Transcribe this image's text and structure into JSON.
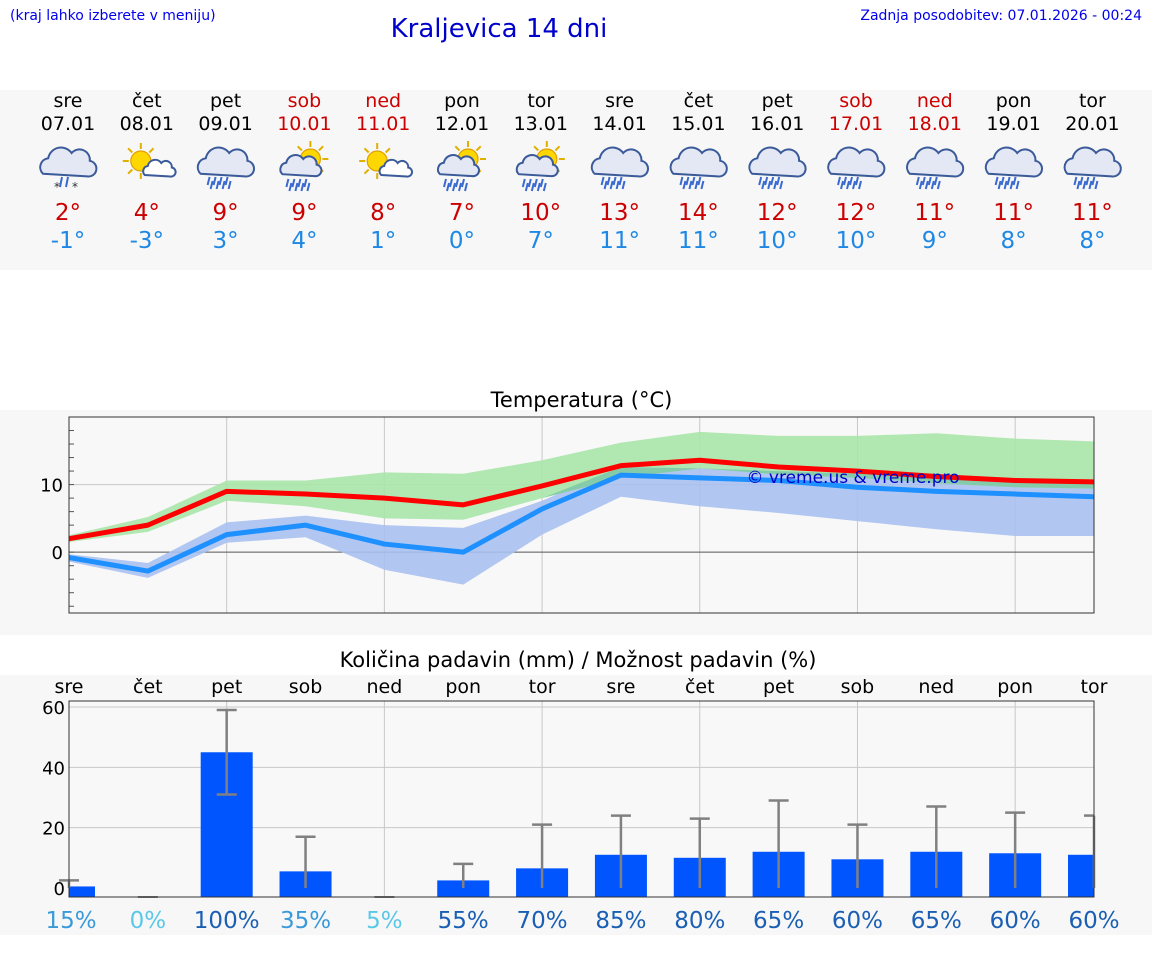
{
  "header": {
    "menu_hint": "(kraj lahko izberete v meniju)",
    "title": "Kraljevica 14 dni",
    "updated": "Zadnja posodobitev: 07.01.2026 - 00:24"
  },
  "colors": {
    "weekday": "#000000",
    "weekend": "#cc0000",
    "tmax": "#cc0000",
    "tmin": "#1e88e5",
    "line_max": "#ff0000",
    "line_min": "#1e90ff",
    "band_max": "#a8e6a8",
    "band_min": "#a8c0f0",
    "band_overlap": "#7ec8a8",
    "bar": "#0055ff",
    "errbar": "#808080",
    "watermark": "#0000cc"
  },
  "days": [
    {
      "day": "sre",
      "date": "07.01",
      "weekend": false,
      "icon": "cloud-snow-icon",
      "tmax": "2°",
      "tmin": "-1°"
    },
    {
      "day": "čet",
      "date": "08.01",
      "weekend": false,
      "icon": "sun-cloud-icon",
      "tmax": "4°",
      "tmin": "-3°"
    },
    {
      "day": "pet",
      "date": "09.01",
      "weekend": false,
      "icon": "cloud-rain-icon",
      "tmax": "9°",
      "tmin": "3°"
    },
    {
      "day": "sob",
      "date": "10.01",
      "weekend": true,
      "icon": "sun-cloud-rain-icon",
      "tmax": "9°",
      "tmin": "4°"
    },
    {
      "day": "ned",
      "date": "11.01",
      "weekend": true,
      "icon": "sun-cloud-icon",
      "tmax": "8°",
      "tmin": "1°"
    },
    {
      "day": "pon",
      "date": "12.01",
      "weekend": false,
      "icon": "sun-cloud-rain-icon",
      "tmax": "7°",
      "tmin": "0°"
    },
    {
      "day": "tor",
      "date": "13.01",
      "weekend": false,
      "icon": "sun-cloud-rain-icon",
      "tmax": "10°",
      "tmin": "7°"
    },
    {
      "day": "sre",
      "date": "14.01",
      "weekend": false,
      "icon": "cloud-rain-icon",
      "tmax": "13°",
      "tmin": "11°"
    },
    {
      "day": "čet",
      "date": "15.01",
      "weekend": false,
      "icon": "cloud-rain-icon",
      "tmax": "14°",
      "tmin": "11°"
    },
    {
      "day": "pet",
      "date": "16.01",
      "weekend": false,
      "icon": "cloud-rain-icon",
      "tmax": "12°",
      "tmin": "10°"
    },
    {
      "day": "sob",
      "date": "17.01",
      "weekend": true,
      "icon": "cloud-rain-icon",
      "tmax": "12°",
      "tmin": "10°"
    },
    {
      "day": "ned",
      "date": "18.01",
      "weekend": true,
      "icon": "cloud-rain-icon",
      "tmax": "11°",
      "tmin": "9°"
    },
    {
      "day": "pon",
      "date": "19.01",
      "weekend": false,
      "icon": "cloud-rain-icon",
      "tmax": "11°",
      "tmin": "8°"
    },
    {
      "day": "tor",
      "date": "20.01",
      "weekend": false,
      "icon": "cloud-rain-icon",
      "tmax": "11°",
      "tmin": "8°"
    }
  ],
  "chart_data": [
    {
      "type": "line",
      "title": "Temperatura (°C)",
      "xlabel": "",
      "ylabel": "",
      "ylim": [
        -9,
        20
      ],
      "yticks": [
        0,
        10
      ],
      "grid": true,
      "watermark": "© vreme.us & vreme.pro",
      "x": [
        0,
        1,
        2,
        3,
        4,
        5,
        6,
        7,
        8,
        9,
        10,
        11,
        12,
        13
      ],
      "series": [
        {
          "name": "max",
          "values": [
            2,
            4,
            9,
            8.6,
            8,
            7,
            9.8,
            12.8,
            13.6,
            12.6,
            12,
            11.2,
            10.6,
            10.4
          ]
        },
        {
          "name": "min",
          "values": [
            -0.8,
            -2.8,
            2.6,
            4,
            1.2,
            0,
            6.4,
            11.4,
            11,
            10.6,
            9.6,
            9,
            8.6,
            8.2
          ]
        }
      ],
      "bands": [
        {
          "name": "max_range",
          "lo": [
            1.5,
            3,
            7.6,
            6.8,
            5,
            4.8,
            8,
            11,
            12.4,
            11.5,
            11,
            10.2,
            9.6,
            9.4
          ],
          "hi": [
            2.5,
            5.2,
            10.6,
            10.6,
            11.8,
            11.6,
            13.6,
            16.2,
            17.8,
            17.2,
            17.2,
            17.6,
            16.8,
            16.4
          ]
        },
        {
          "name": "min_range",
          "lo": [
            -1.4,
            -3.8,
            1.4,
            2.2,
            -2.6,
            -4.8,
            2.6,
            8.2,
            6.8,
            5.8,
            4.6,
            3.4,
            2.4,
            2.4
          ],
          "hi": [
            -0.3,
            -1.6,
            4.4,
            5.4,
            4,
            3.6,
            7.6,
            12.6,
            12.4,
            12,
            11.6,
            11.2,
            10.8,
            10.6
          ]
        }
      ]
    },
    {
      "type": "bar",
      "title": "Količina padavin (mm) / Možnost padavin (%)",
      "categories": [
        "sre",
        "čet",
        "pet",
        "sob",
        "ned",
        "pon",
        "tor",
        "sre",
        "čet",
        "pet",
        "sob",
        "ned",
        "pon",
        "tor"
      ],
      "ylim": [
        -3,
        62
      ],
      "yticks": [
        0,
        20,
        40,
        60
      ],
      "values": [
        0.5,
        0,
        45,
        5.5,
        0,
        2.5,
        6.5,
        11,
        10,
        12,
        9.5,
        12,
        11.5,
        11
      ],
      "err_lo": [
        0,
        0,
        31,
        0,
        0,
        0,
        0,
        0,
        0,
        0,
        0,
        0,
        0,
        0
      ],
      "err_hi": [
        2.5,
        0,
        59,
        17,
        0,
        8,
        21,
        24,
        23,
        29,
        21,
        27,
        25,
        24
      ],
      "probability": [
        "15%",
        "0%",
        "100%",
        "35%",
        "5%",
        "55%",
        "70%",
        "85%",
        "80%",
        "65%",
        "60%",
        "65%",
        "60%",
        "60%"
      ],
      "probability_colors": [
        "#3a9ad9",
        "#5bc8e8",
        "#1a5fb4",
        "#3a9ad9",
        "#5bc8e8",
        "#1a5fb4",
        "#1a5fb4",
        "#1a5fb4",
        "#1a5fb4",
        "#1a5fb4",
        "#1a5fb4",
        "#1a5fb4",
        "#1a5fb4",
        "#1a5fb4"
      ]
    }
  ]
}
